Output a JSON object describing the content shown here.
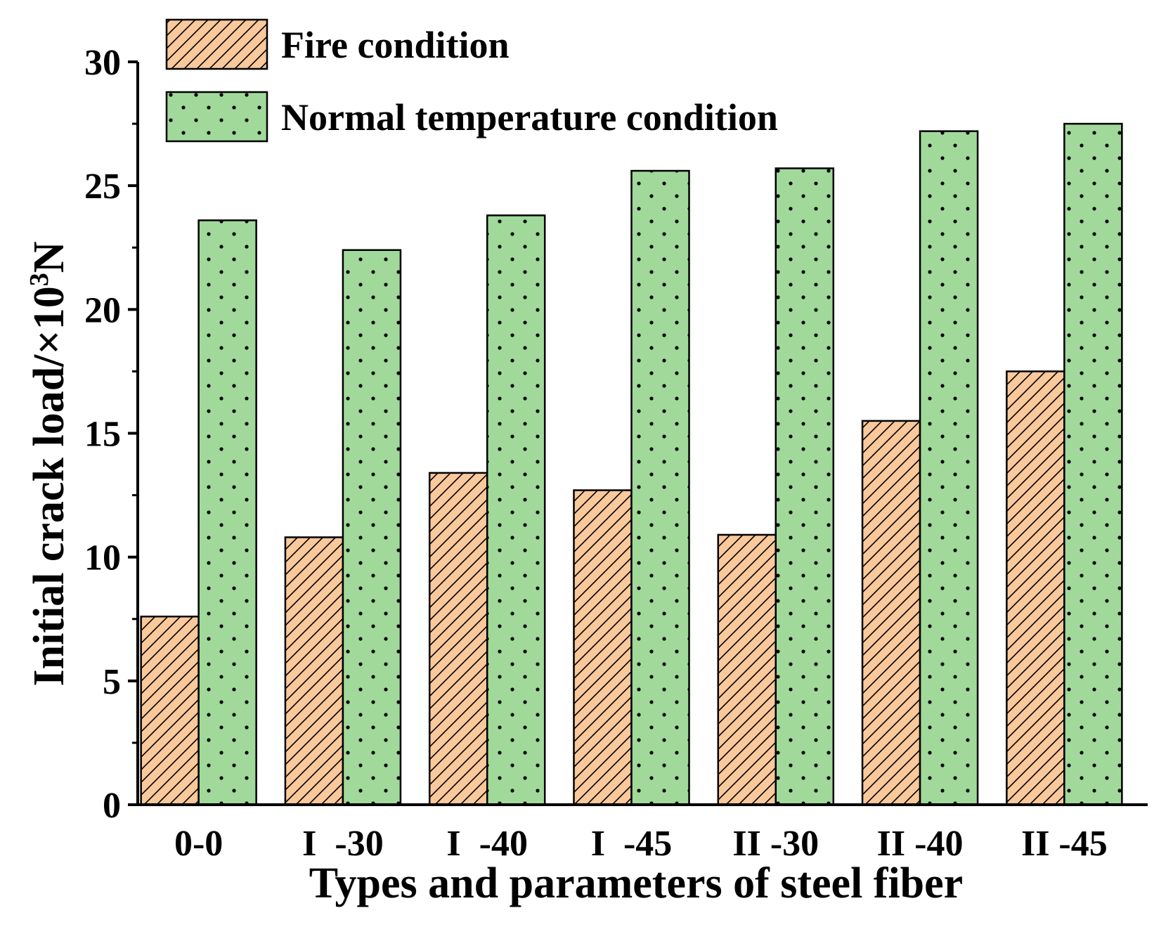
{
  "chart_data": {
    "type": "bar",
    "title": "",
    "xlabel": "Types and parameters of steel fiber",
    "ylabel": {
      "prefix": "Initial crack load/×10",
      "superscript": "3",
      "suffix": "N"
    },
    "ylim": [
      0,
      30
    ],
    "yticks": [
      0,
      5,
      10,
      15,
      20,
      25,
      30
    ],
    "ytick_labels": [
      "0",
      "5",
      "10",
      "15",
      "20",
      "25",
      "30"
    ],
    "categories": [
      "0-0",
      "I -30",
      "I -40",
      "I -45",
      "II -30",
      "II -40",
      "II -45"
    ],
    "category_labels": [
      "0-0",
      "I  -30",
      "I  -40",
      "I  -45",
      "II -30",
      "II -40",
      "II -45"
    ],
    "series": [
      {
        "name": "Fire condition",
        "color": "#F9C89B",
        "pattern": "hatch",
        "values": [
          7.6,
          10.8,
          13.4,
          12.7,
          10.9,
          15.5,
          17.5
        ]
      },
      {
        "name": "Normal temperature condition",
        "color": "#A1D99B",
        "pattern": "dots",
        "values": [
          23.6,
          22.4,
          23.8,
          25.6,
          25.7,
          27.2,
          27.5
        ]
      }
    ],
    "legend": {
      "position": "top-left"
    },
    "grid": false
  }
}
